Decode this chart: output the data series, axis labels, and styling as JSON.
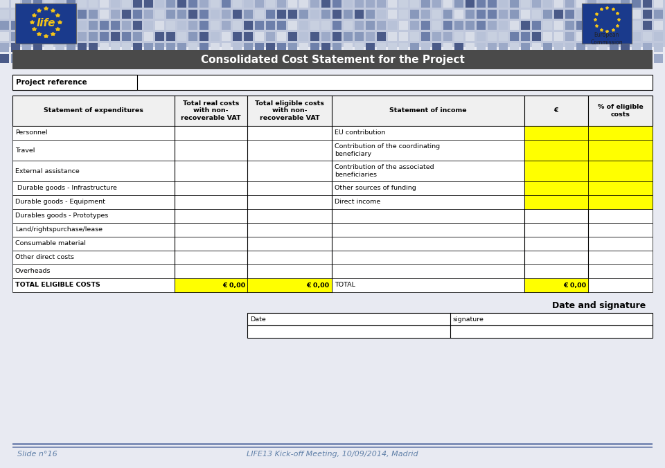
{
  "title": "Consolidated Cost Statement for the Project",
  "slide_number": "Slide n°16",
  "footer_text": "LIFE13 Kick-off Meeting, 10/09/2014, Madrid",
  "project_ref_label": "Project reference",
  "header_bg": "#4a4a4a",
  "header_text_color": "#ffffff",
  "yellow": "#ffff00",
  "white": "#ffffff",
  "black": "#000000",
  "bg_color": "#e8eaf2",
  "tile_colors": [
    "#6d7faa",
    "#8898bb",
    "#9daac8",
    "#b8c2d8",
    "#c8d0e0",
    "#d8dde8",
    "#4a5a88"
  ],
  "col_headers": [
    "Statement of expenditures",
    "Total real costs\nwith non-\nrecoverable VAT",
    "Total eligible costs\nwith non-\nrecoverable VAT",
    "Statement of income",
    "€",
    "% of eligible\ncosts"
  ],
  "left_rows": [
    "Personnel",
    "Travel",
    "External assistance",
    " Durable goods - Infrastructure",
    "Durable goods - Equipment",
    "Durables goods - Prototypes",
    "Land/rightspurchase/lease",
    "Consumable material",
    "Other direct costs",
    "Overheads",
    "TOTAL ELIGIBLE COSTS"
  ],
  "right_rows": [
    "EU contribution",
    "Contribution of the coordinating\nbeneficiary",
    "Contribution of the associated\nbeneficiaries",
    "Other sources of funding",
    "Direct income",
    "",
    "",
    "",
    "",
    "",
    "TOTAL"
  ],
  "total_row_index": 10,
  "yellow_right_rows": [
    0,
    1,
    2,
    3,
    4
  ],
  "yellow_last_col_rows": [
    0,
    1,
    2,
    3,
    4
  ],
  "total_values": "€ 0,00",
  "date_signature_title": "Date and signature",
  "date_label": "Date",
  "signature_label": "signature"
}
